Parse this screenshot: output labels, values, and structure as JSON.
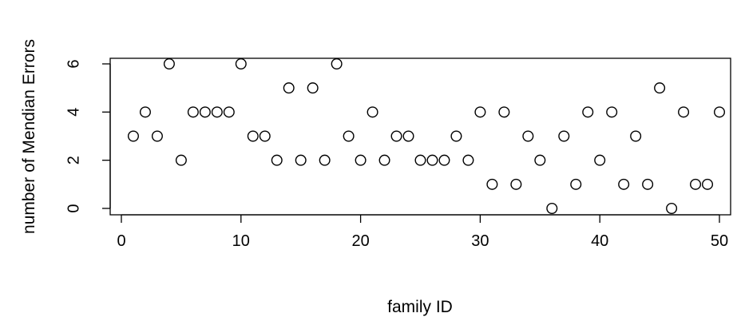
{
  "chart_data": {
    "type": "scatter",
    "title": "",
    "xlabel": "family ID",
    "ylabel": "number of Mendian Errors",
    "xlim": [
      0,
      50
    ],
    "ylim": [
      0,
      6
    ],
    "x_ticks": [
      "0",
      "10",
      "20",
      "30",
      "40",
      "50"
    ],
    "y_ticks": [
      "0",
      "2",
      "4",
      "6"
    ],
    "grid": false,
    "marker": "open-circle",
    "series": [
      {
        "x": [
          1,
          2,
          3,
          4,
          5,
          6,
          7,
          8,
          9,
          10,
          11,
          12,
          13,
          14,
          15,
          16,
          17,
          18,
          19,
          20,
          21,
          22,
          23,
          24,
          25,
          26,
          27,
          28,
          29,
          30,
          31,
          32,
          33,
          34,
          35,
          36,
          37,
          38,
          39,
          40,
          41,
          42,
          43,
          44,
          45,
          46,
          47,
          48,
          49,
          50
        ],
        "y": [
          3,
          4,
          3,
          6,
          2,
          4,
          4,
          4,
          4,
          6,
          3,
          3,
          2,
          5,
          2,
          5,
          2,
          6,
          3,
          2,
          4,
          2,
          3,
          3,
          2,
          2,
          2,
          3,
          2,
          4,
          1,
          4,
          1,
          3,
          2,
          0,
          3,
          1,
          4,
          2,
          4,
          1,
          3,
          1,
          5,
          0,
          4,
          1,
          1,
          4
        ]
      }
    ]
  }
}
